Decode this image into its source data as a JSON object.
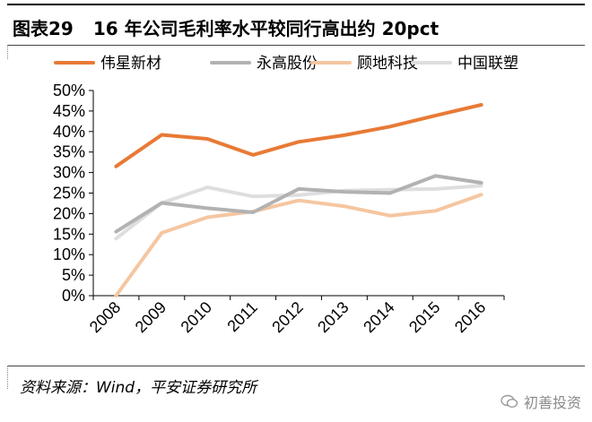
{
  "header": {
    "figure_label": "图表29",
    "title": "16 年公司毛利率水平较同行高出约 20pct"
  },
  "footer": {
    "source": "资料来源：Wind，平安证券研究所",
    "watermark": "初善投资"
  },
  "chart_data": {
    "type": "line",
    "title": "16 年公司毛利率水平较同行高出约 20pct",
    "xlabel": "",
    "ylabel": "",
    "categories": [
      "2008",
      "2009",
      "2010",
      "2011",
      "2012",
      "2013",
      "2014",
      "2015",
      "2016"
    ],
    "y_tick_labels": [
      "0%",
      "5%",
      "10%",
      "15%",
      "20%",
      "25%",
      "30%",
      "35%",
      "40%",
      "45%",
      "50%"
    ],
    "ylim": [
      0,
      50
    ],
    "y_step": 5,
    "grid": false,
    "legend_position": "top",
    "series": [
      {
        "name": "伟星新材",
        "color": "#e87a36",
        "values": [
          31.5,
          39.2,
          38.2,
          34.3,
          37.5,
          39.1,
          41.2,
          43.9,
          46.5
        ]
      },
      {
        "name": "永高股份",
        "color": "#b2b2b2",
        "values": [
          15.6,
          22.6,
          21.3,
          20.3,
          26.0,
          25.3,
          25.0,
          29.2,
          27.5
        ]
      },
      {
        "name": "顾地科技",
        "color": "#f5c6a0",
        "values": [
          0.0,
          15.3,
          19.1,
          20.5,
          23.2,
          21.8,
          19.5,
          20.7,
          24.6
        ]
      },
      {
        "name": "中国联塑",
        "color": "#dedede",
        "values": [
          13.9,
          22.6,
          26.4,
          24.2,
          24.5,
          25.6,
          25.8,
          26.0,
          26.8
        ]
      }
    ]
  }
}
